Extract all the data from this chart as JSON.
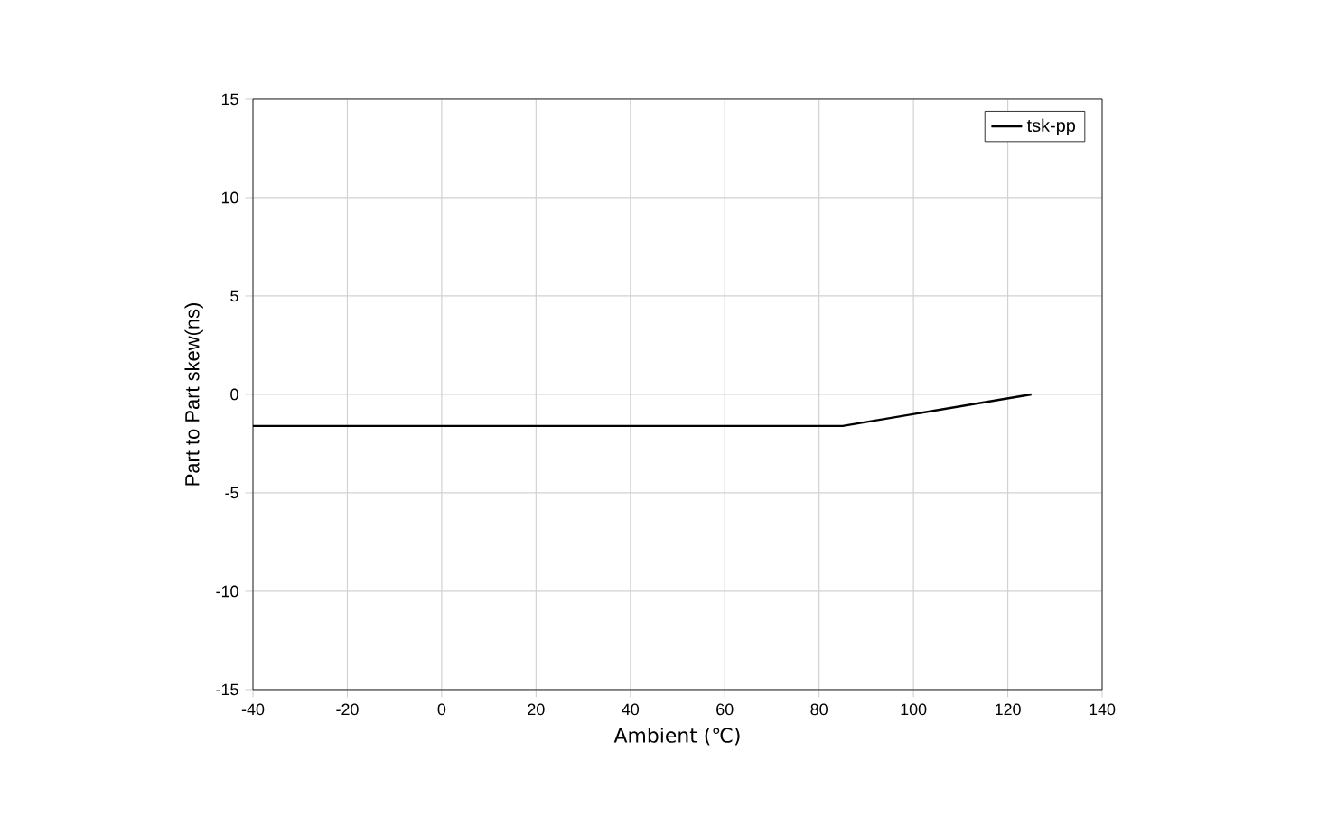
{
  "chart_data": {
    "type": "line",
    "xlabel": "Ambient (℃)",
    "ylabel": "Part to Part skew(ns)",
    "x": [
      -40,
      85,
      125
    ],
    "series": [
      {
        "name": "tsk-pp",
        "color": "#000000",
        "values": [
          -1.6,
          -1.6,
          0
        ]
      }
    ],
    "xlim": [
      -40,
      140
    ],
    "xticks": [
      -40,
      -20,
      0,
      20,
      40,
      60,
      80,
      100,
      120,
      140
    ],
    "ylim": [
      -15,
      15
    ],
    "yticks": [
      -15,
      -10,
      -5,
      0,
      5,
      10,
      15
    ],
    "grid": true,
    "legend": "top right",
    "marker": "none",
    "line_style": "solid"
  }
}
